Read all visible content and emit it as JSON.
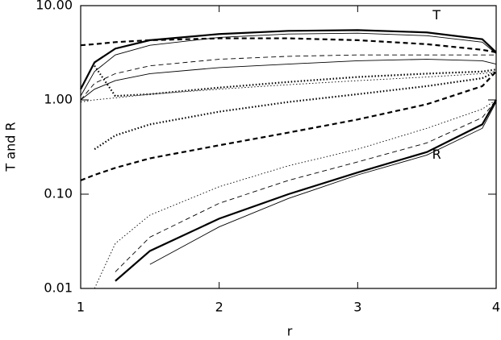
{
  "chart_data": {
    "type": "line",
    "xlabel": "r",
    "ylabel": "T and R",
    "log_y": true,
    "x": [
      1,
      1.1,
      1.25,
      1.5,
      2,
      2.5,
      3,
      3.5,
      3.9,
      4
    ],
    "xlim": [
      1,
      4
    ],
    "xticks": [
      1,
      2,
      3,
      4
    ],
    "ylim": [
      0.01,
      10
    ],
    "yticks": [
      {
        "value": 0.01,
        "label": "0.01"
      },
      {
        "value": 0.1,
        "label": "0.10"
      },
      {
        "value": 1,
        "label": "1.00"
      },
      {
        "value": 10,
        "label": "10.00"
      }
    ],
    "annotations": [
      {
        "text": "T",
        "x": 3.57,
        "y": 7.8
      },
      {
        "text": "R",
        "x": 3.57,
        "y": 0.26
      }
    ],
    "series": [
      {
        "color": "#000000",
        "style": "solid",
        "weight": "thick",
        "values": [
          1.3,
          2.5,
          3.5,
          4.3,
          5.0,
          5.4,
          5.5,
          5.2,
          4.4,
          3.2
        ]
      },
      {
        "color": "#000000",
        "style": "solid",
        "weight": "thin",
        "values": [
          1.1,
          2.0,
          3.0,
          3.8,
          4.6,
          5.0,
          5.1,
          4.8,
          4.1,
          3.1
        ]
      },
      {
        "color": "#000000",
        "style": "dashed",
        "weight": "thick",
        "values": [
          3.8,
          3.9,
          4.1,
          4.3,
          4.5,
          4.5,
          4.3,
          3.9,
          3.4,
          3.2
        ]
      },
      {
        "color": "#000000",
        "style": "dashed",
        "weight": "thin",
        "values": [
          1.0,
          1.5,
          1.9,
          2.3,
          2.7,
          2.9,
          3.0,
          3.0,
          3.0,
          3.0
        ]
      },
      {
        "color": "#000000",
        "style": "solid",
        "weight": "thin",
        "values": [
          1.0,
          1.3,
          1.6,
          1.9,
          2.2,
          2.4,
          2.6,
          2.7,
          2.6,
          2.4
        ]
      },
      {
        "color": "#000000",
        "style": "dotted",
        "weight": "thick",
        "values": [
          null,
          2.3,
          1.1,
          1.15,
          1.35,
          1.55,
          1.75,
          1.9,
          2.0,
          2.1
        ]
      },
      {
        "color": "#000000",
        "style": "dotted",
        "weight": "thin",
        "values": [
          0.95,
          1.0,
          1.05,
          1.15,
          1.3,
          1.45,
          1.6,
          1.75,
          1.9,
          2.0
        ]
      },
      {
        "color": "#000000",
        "style": "dotted",
        "weight": "thick",
        "values": [
          null,
          0.3,
          0.42,
          0.55,
          0.75,
          0.95,
          1.15,
          1.4,
          1.7,
          2.0
        ]
      },
      {
        "color": "#000000",
        "style": "dashed",
        "weight": "thick",
        "values": [
          0.14,
          0.16,
          0.19,
          0.24,
          0.33,
          0.45,
          0.62,
          0.9,
          1.4,
          2.0
        ]
      },
      {
        "color": "#000000",
        "style": "dotted",
        "weight": "thin",
        "values": [
          null,
          0.01,
          0.03,
          0.06,
          0.12,
          0.2,
          0.3,
          0.5,
          0.8,
          1.0
        ]
      },
      {
        "color": "#000000",
        "style": "dashed",
        "weight": "thin",
        "values": [
          null,
          null,
          0.015,
          0.035,
          0.08,
          0.14,
          0.22,
          0.35,
          0.65,
          1.0
        ]
      },
      {
        "color": "#000000",
        "style": "solid",
        "weight": "thick",
        "values": [
          null,
          null,
          0.012,
          0.025,
          0.055,
          0.1,
          0.17,
          0.28,
          0.55,
          1.0
        ]
      },
      {
        "color": "#000000",
        "style": "solid",
        "weight": "thin",
        "values": [
          null,
          null,
          null,
          0.018,
          0.045,
          0.09,
          0.16,
          0.26,
          0.5,
          0.95
        ]
      }
    ]
  }
}
